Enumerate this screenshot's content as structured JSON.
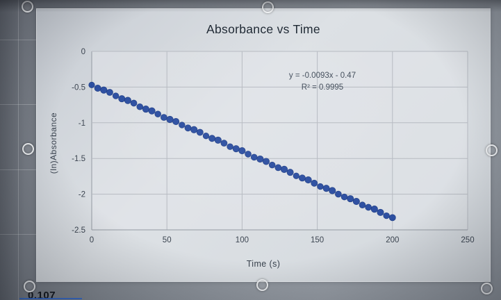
{
  "chart_data": {
    "type": "scatter",
    "title": "Absorbance vs Time",
    "xlabel": "Time (s)",
    "ylabel": "(ln)Absorbance",
    "xlim": [
      0,
      250
    ],
    "ylim": [
      -2.5,
      0
    ],
    "x_ticks": [
      0,
      50,
      100,
      150,
      200,
      250
    ],
    "y_ticks": [
      0,
      -0.5,
      -1,
      -1.5,
      -2,
      -2.5
    ],
    "grid": true,
    "legend": "none",
    "annotation": {
      "equation": "y = -0.0093x - 0.47",
      "r_squared": "R² = 0.9995"
    },
    "series": [
      {
        "name": "absorbance",
        "color": "#24489e",
        "points": [
          [
            0,
            -0.47
          ],
          [
            4,
            -0.507
          ],
          [
            8,
            -0.544
          ],
          [
            12,
            -0.582
          ],
          [
            16,
            -0.619
          ],
          [
            20,
            -0.656
          ],
          [
            24,
            -0.693
          ],
          [
            28,
            -0.73
          ],
          [
            32,
            -0.768
          ],
          [
            36,
            -0.805
          ],
          [
            40,
            -0.842
          ],
          [
            44,
            -0.879
          ],
          [
            48,
            -0.916
          ],
          [
            52,
            -0.954
          ],
          [
            56,
            -0.991
          ],
          [
            60,
            -1.028
          ],
          [
            64,
            -1.065
          ],
          [
            68,
            -1.102
          ],
          [
            72,
            -1.14
          ],
          [
            76,
            -1.177
          ],
          [
            80,
            -1.214
          ],
          [
            84,
            -1.251
          ],
          [
            88,
            -1.288
          ],
          [
            92,
            -1.326
          ],
          [
            96,
            -1.363
          ],
          [
            100,
            -1.4
          ],
          [
            104,
            -1.437
          ],
          [
            108,
            -1.474
          ],
          [
            112,
            -1.512
          ],
          [
            116,
            -1.549
          ],
          [
            120,
            -1.586
          ],
          [
            124,
            -1.623
          ],
          [
            128,
            -1.66
          ],
          [
            132,
            -1.698
          ],
          [
            136,
            -1.735
          ],
          [
            140,
            -1.772
          ],
          [
            144,
            -1.809
          ],
          [
            148,
            -1.846
          ],
          [
            152,
            -1.884
          ],
          [
            156,
            -1.921
          ],
          [
            160,
            -1.958
          ],
          [
            164,
            -1.995
          ],
          [
            168,
            -2.032
          ],
          [
            172,
            -2.07
          ],
          [
            176,
            -2.107
          ],
          [
            180,
            -2.144
          ],
          [
            184,
            -2.181
          ],
          [
            188,
            -2.218
          ],
          [
            192,
            -2.256
          ],
          [
            196,
            -2.293
          ],
          [
            200,
            -2.33
          ]
        ]
      }
    ]
  },
  "spreadsheet": {
    "partial_cell_value": "0.107"
  }
}
